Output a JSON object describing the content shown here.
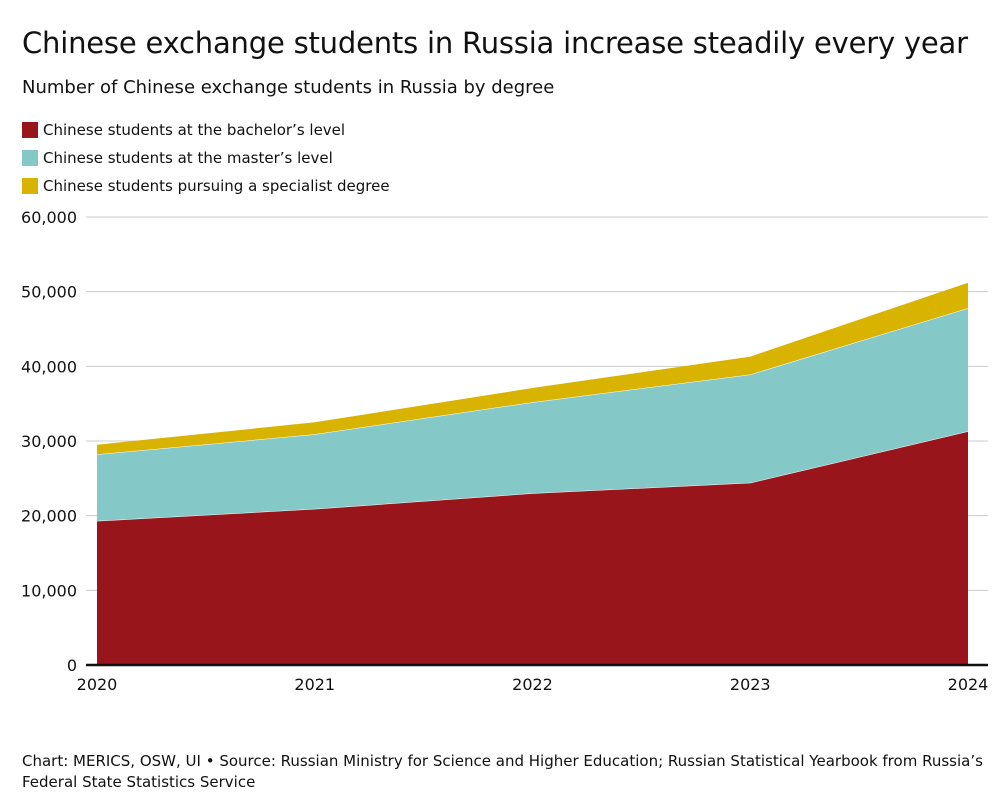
{
  "title": "Chinese exchange students in Russia increase steadily every year",
  "subtitle": "Number of Chinese exchange students in Russia by degree",
  "source": "Chart: MERICS, OSW, UI • Source: Russian Ministry for Science and Higher Education; Russian Statistical Yearbook from Russia’s Federal State Statistics Service",
  "colors": {
    "bachelor": "#98161b",
    "master": "#84c8c8",
    "specialist": "#d8b300",
    "grid": "#cccccc",
    "axis": "#111111"
  },
  "chart_data": {
    "type": "area",
    "stacked": true,
    "x": [
      "2020",
      "2021",
      "2022",
      "2023",
      "2024"
    ],
    "series": [
      {
        "name": "Chinese students at the bachelor’s level",
        "color_key": "bachelor",
        "values": [
          19300,
          20900,
          23000,
          24400,
          31300
        ]
      },
      {
        "name": "Chinese students at the master’s level",
        "color_key": "master",
        "values": [
          8900,
          10000,
          12200,
          14500,
          16500
        ]
      },
      {
        "name": "Chinese students pursuing a specialist degree",
        "color_key": "specialist",
        "values": [
          1300,
          1600,
          1900,
          2400,
          3400
        ]
      }
    ],
    "ylim": [
      0,
      60000
    ],
    "yticks": [
      "0",
      "10,000",
      "20,000",
      "30,000",
      "40,000",
      "50,000",
      "60,000"
    ],
    "grid": true,
    "legend": "top-left"
  }
}
